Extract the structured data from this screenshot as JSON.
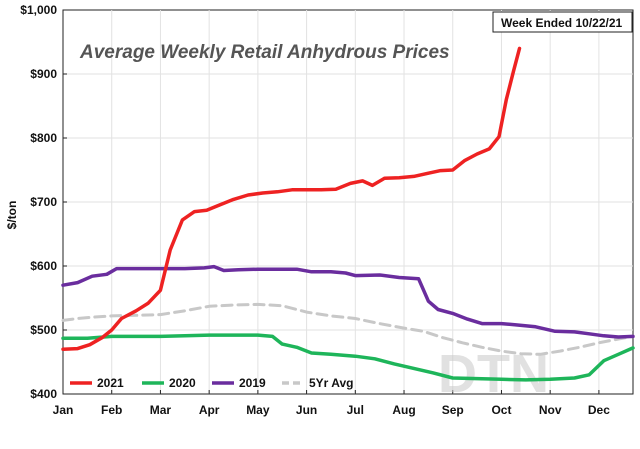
{
  "chart_data": {
    "type": "line",
    "title": "Average Weekly Retail Anhydrous Prices",
    "note": "Week Ended 10/22/21",
    "xlabel": "",
    "ylabel": "$/ton",
    "ylim": [
      400,
      1000
    ],
    "yticks": [
      400,
      500,
      600,
      700,
      800,
      900,
      1000
    ],
    "ytick_labels": [
      "$400",
      "$500",
      "$600",
      "$700",
      "$800",
      "$900",
      "$1,000"
    ],
    "xlim": [
      0,
      11.7
    ],
    "xticks": [
      0,
      1,
      2,
      3,
      4,
      5,
      6,
      7,
      8,
      9,
      10,
      11
    ],
    "xtick_labels": [
      "Jan",
      "Feb",
      "Mar",
      "Apr",
      "May",
      "Jun",
      "Jul",
      "Aug",
      "Sep",
      "Oct",
      "Nov",
      "Dec"
    ],
    "grid": true,
    "legend_position": "bottom-left",
    "watermark": "DTN",
    "series": [
      {
        "name": "2021",
        "color": "#ee2222",
        "dashed": false,
        "points": [
          [
            0,
            470
          ],
          [
            0.3,
            471
          ],
          [
            0.55,
            477
          ],
          [
            0.8,
            488
          ],
          [
            1.0,
            500
          ],
          [
            1.2,
            518
          ],
          [
            1.5,
            530
          ],
          [
            1.75,
            542
          ],
          [
            2.0,
            562
          ],
          [
            2.2,
            625
          ],
          [
            2.45,
            672
          ],
          [
            2.7,
            685
          ],
          [
            2.95,
            687
          ],
          [
            3.2,
            695
          ],
          [
            3.5,
            704
          ],
          [
            3.8,
            711
          ],
          [
            4.1,
            714
          ],
          [
            4.4,
            716
          ],
          [
            4.7,
            719
          ],
          [
            5.0,
            719
          ],
          [
            5.3,
            719
          ],
          [
            5.6,
            720
          ],
          [
            5.9,
            729
          ],
          [
            6.15,
            733
          ],
          [
            6.35,
            726
          ],
          [
            6.6,
            737
          ],
          [
            6.9,
            738
          ],
          [
            7.2,
            740
          ],
          [
            7.5,
            745
          ],
          [
            7.75,
            749
          ],
          [
            8.0,
            750
          ],
          [
            8.25,
            765
          ],
          [
            8.5,
            775
          ],
          [
            8.75,
            783
          ],
          [
            8.95,
            802
          ],
          [
            9.1,
            860
          ],
          [
            9.25,
            905
          ],
          [
            9.37,
            940
          ]
        ]
      },
      {
        "name": "2020",
        "color": "#1eb55a",
        "dashed": false,
        "points": [
          [
            0,
            487
          ],
          [
            0.5,
            487
          ],
          [
            1.0,
            490
          ],
          [
            1.5,
            490
          ],
          [
            2.0,
            490
          ],
          [
            2.5,
            491
          ],
          [
            3.0,
            492
          ],
          [
            3.5,
            492
          ],
          [
            4.0,
            492
          ],
          [
            4.3,
            490
          ],
          [
            4.5,
            478
          ],
          [
            4.8,
            473
          ],
          [
            5.1,
            464
          ],
          [
            5.5,
            462
          ],
          [
            6.0,
            459
          ],
          [
            6.4,
            455
          ],
          [
            6.8,
            447
          ],
          [
            7.2,
            440
          ],
          [
            7.6,
            433
          ],
          [
            8.0,
            425
          ],
          [
            8.5,
            424
          ],
          [
            9.0,
            423
          ],
          [
            9.5,
            422
          ],
          [
            10.0,
            423
          ],
          [
            10.5,
            425
          ],
          [
            10.8,
            430
          ],
          [
            11.1,
            452
          ],
          [
            11.4,
            462
          ],
          [
            11.7,
            472
          ]
        ]
      },
      {
        "name": "2019",
        "color": "#6a2d9e",
        "dashed": false,
        "points": [
          [
            0,
            570
          ],
          [
            0.3,
            574
          ],
          [
            0.6,
            584
          ],
          [
            0.9,
            587
          ],
          [
            1.1,
            596
          ],
          [
            1.5,
            596
          ],
          [
            2.0,
            596
          ],
          [
            2.5,
            596
          ],
          [
            2.9,
            597
          ],
          [
            3.1,
            599
          ],
          [
            3.3,
            593
          ],
          [
            3.6,
            594
          ],
          [
            4.0,
            595
          ],
          [
            4.5,
            595
          ],
          [
            4.8,
            595
          ],
          [
            5.1,
            591
          ],
          [
            5.5,
            591
          ],
          [
            5.8,
            589
          ],
          [
            6.0,
            585
          ],
          [
            6.5,
            586
          ],
          [
            6.9,
            582
          ],
          [
            7.3,
            580
          ],
          [
            7.5,
            545
          ],
          [
            7.7,
            532
          ],
          [
            8.0,
            526
          ],
          [
            8.3,
            517
          ],
          [
            8.6,
            510
          ],
          [
            9.0,
            510
          ],
          [
            9.3,
            508
          ],
          [
            9.7,
            505
          ],
          [
            10.1,
            498
          ],
          [
            10.5,
            497
          ],
          [
            10.8,
            494
          ],
          [
            11.1,
            491
          ],
          [
            11.4,
            489
          ],
          [
            11.7,
            490
          ]
        ]
      },
      {
        "name": "5Yr Avg",
        "color": "#c8c8c8",
        "dashed": true,
        "points": [
          [
            0,
            515
          ],
          [
            0.3,
            518
          ],
          [
            0.6,
            520
          ],
          [
            1.0,
            522
          ],
          [
            1.5,
            523
          ],
          [
            2.0,
            524
          ],
          [
            2.5,
            530
          ],
          [
            3.0,
            537
          ],
          [
            3.5,
            539
          ],
          [
            4.0,
            540
          ],
          [
            4.5,
            538
          ],
          [
            5.0,
            528
          ],
          [
            5.5,
            522
          ],
          [
            6.0,
            518
          ],
          [
            6.5,
            510
          ],
          [
            7.0,
            503
          ],
          [
            7.4,
            498
          ],
          [
            7.8,
            488
          ],
          [
            8.2,
            480
          ],
          [
            8.6,
            473
          ],
          [
            9.0,
            467
          ],
          [
            9.4,
            463
          ],
          [
            9.8,
            462
          ],
          [
            10.2,
            467
          ],
          [
            10.6,
            473
          ],
          [
            11.0,
            480
          ],
          [
            11.4,
            486
          ],
          [
            11.7,
            490
          ]
        ]
      }
    ]
  }
}
